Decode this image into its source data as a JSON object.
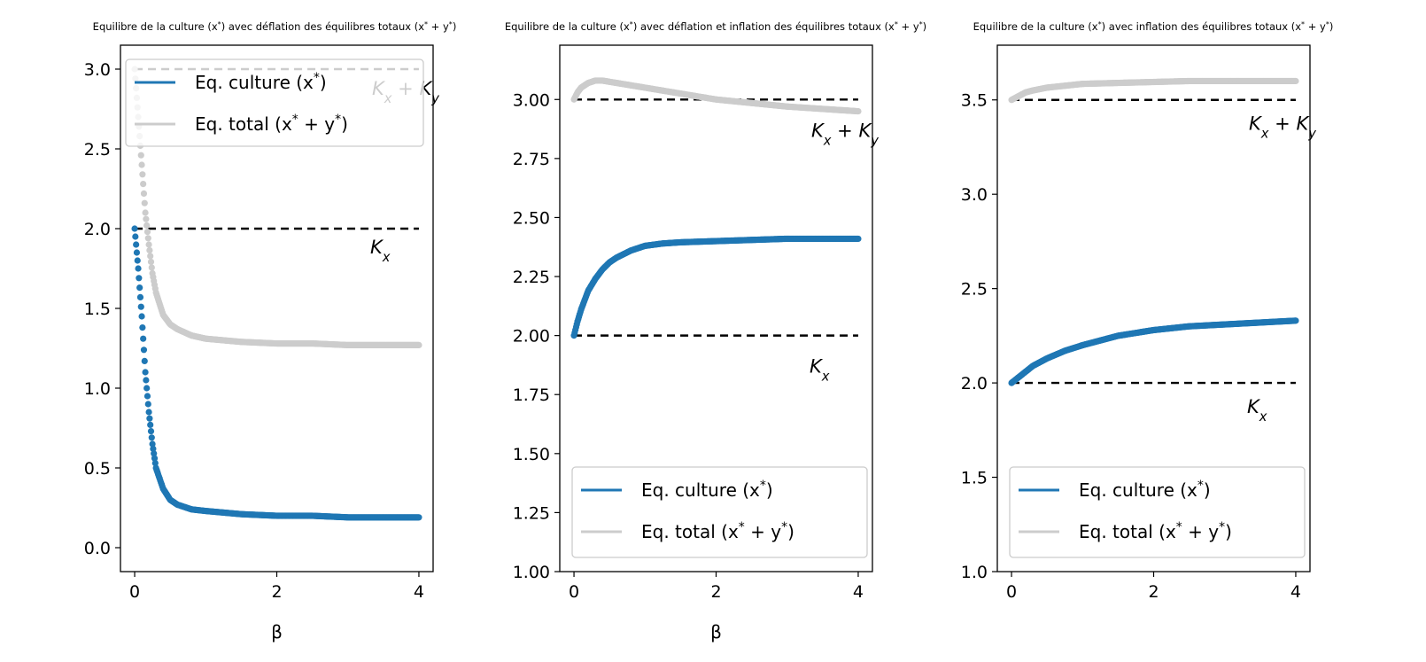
{
  "figure": {
    "panels": [
      {
        "title": "Equilibre de la culture (x*) avec déflation des équilibres totaux (x* + y*)",
        "xlabel": "β",
        "annotations": [
          "Kx + Ky",
          "Kx"
        ],
        "legend": [
          "Eq. culture (x*)",
          "Eq. total (x* + y*)"
        ]
      },
      {
        "title": "Equilibre de la culture (x*) avec déflation et inflation des équilibres totaux (x* + y*)",
        "xlabel": "β",
        "annotations": [
          "Kx + Ky",
          "Kx"
        ],
        "legend": [
          "Eq. culture (x*)",
          "Eq. total (x* + y*)"
        ]
      },
      {
        "title": "Equilibre de la culture (x*)  avec inflation des équilibres totaux (x* + y*)",
        "xlabel": "",
        "annotations": [
          "Kx + Ky",
          "Kx"
        ],
        "legend": [
          "Eq. culture (x*)",
          "Eq. total (x* + y*)"
        ]
      }
    ]
  },
  "chart_data": [
    {
      "type": "scatter",
      "title": "Equilibre de la culture (x*) avec déflation des équilibres totaux (x* + y*)",
      "xlabel": "β",
      "ylabel": "",
      "xlim": [
        -0.2,
        4.2
      ],
      "ylim": [
        -0.15,
        3.15
      ],
      "xticks": [
        0,
        2,
        4
      ],
      "yticks": [
        0.0,
        0.5,
        1.0,
        1.5,
        2.0,
        2.5,
        3.0
      ],
      "ytick_labels": [
        "0.0",
        "0.5",
        "1.0",
        "1.5",
        "2.0",
        "2.5",
        "3.0"
      ],
      "legend_position": "top-right",
      "reference_lines": [
        {
          "label": "Kx + Ky",
          "y": 3.0,
          "x": [
            0,
            4
          ]
        },
        {
          "label": "Kx",
          "y": 2.0,
          "x": [
            0,
            4
          ]
        }
      ],
      "series": [
        {
          "name": "Eq. culture (x*)",
          "color": "#1f77b4",
          "x": [
            0,
            0.05,
            0.1,
            0.15,
            0.2,
            0.25,
            0.3,
            0.4,
            0.5,
            0.6,
            0.8,
            1.0,
            1.5,
            2.0,
            2.5,
            3.0,
            3.5,
            4.0
          ],
          "y": [
            2.0,
            1.75,
            1.45,
            1.1,
            0.85,
            0.65,
            0.5,
            0.37,
            0.3,
            0.27,
            0.24,
            0.23,
            0.21,
            0.2,
            0.2,
            0.19,
            0.19,
            0.19
          ]
        },
        {
          "name": "Eq. total (x* + y*)",
          "color": "#cccccc",
          "x": [
            0,
            0.05,
            0.1,
            0.15,
            0.2,
            0.25,
            0.3,
            0.4,
            0.5,
            0.6,
            0.8,
            1.0,
            1.5,
            2.0,
            2.5,
            3.0,
            3.5,
            4.0
          ],
          "y": [
            3.0,
            2.7,
            2.4,
            2.1,
            1.9,
            1.72,
            1.6,
            1.46,
            1.4,
            1.37,
            1.33,
            1.31,
            1.29,
            1.28,
            1.28,
            1.27,
            1.27,
            1.27
          ]
        }
      ]
    },
    {
      "type": "scatter",
      "title": "Equilibre de la culture (x*) avec déflation et inflation des équilibres totaux (x* + y*)",
      "xlabel": "β",
      "ylabel": "",
      "xlim": [
        -0.2,
        4.2
      ],
      "ylim": [
        1.0,
        3.23
      ],
      "xticks": [
        0,
        2,
        4
      ],
      "yticks": [
        1.0,
        1.25,
        1.5,
        1.75,
        2.0,
        2.25,
        2.5,
        2.75,
        3.0
      ],
      "ytick_labels": [
        "1.00",
        "1.25",
        "1.50",
        "1.75",
        "2.00",
        "2.25",
        "2.50",
        "2.75",
        "3.00"
      ],
      "legend_position": "bottom-right",
      "reference_lines": [
        {
          "label": "Kx + Ky",
          "y": 3.0,
          "x": [
            0,
            4
          ]
        },
        {
          "label": "Kx",
          "y": 2.0,
          "x": [
            0,
            4
          ]
        }
      ],
      "series": [
        {
          "name": "Eq. culture (x*)",
          "color": "#1f77b4",
          "x": [
            0,
            0.05,
            0.1,
            0.2,
            0.3,
            0.4,
            0.5,
            0.6,
            0.8,
            1.0,
            1.25,
            1.5,
            2.0,
            2.5,
            3.0,
            3.5,
            4.0
          ],
          "y": [
            2.0,
            2.06,
            2.11,
            2.19,
            2.24,
            2.28,
            2.31,
            2.33,
            2.36,
            2.38,
            2.39,
            2.395,
            2.4,
            2.405,
            2.41,
            2.41,
            2.41
          ]
        },
        {
          "name": "Eq. total (x* + y*)",
          "color": "#cccccc",
          "x": [
            0,
            0.05,
            0.1,
            0.2,
            0.3,
            0.4,
            0.5,
            0.6,
            0.8,
            1.0,
            1.5,
            2.0,
            2.5,
            3.0,
            3.5,
            4.0
          ],
          "y": [
            3.0,
            3.03,
            3.05,
            3.07,
            3.08,
            3.08,
            3.075,
            3.07,
            3.06,
            3.05,
            3.025,
            3.0,
            2.985,
            2.97,
            2.96,
            2.95
          ]
        }
      ]
    },
    {
      "type": "scatter",
      "title": "Equilibre de la culture (x*)  avec inflation des équilibres totaux (x* + y*)",
      "xlabel": "",
      "ylabel": "",
      "xlim": [
        -0.2,
        4.2
      ],
      "ylim": [
        1.0,
        3.79
      ],
      "xticks": [
        0,
        2,
        4
      ],
      "yticks": [
        1.0,
        1.5,
        2.0,
        2.5,
        3.0,
        3.5
      ],
      "ytick_labels": [
        "1.0",
        "1.5",
        "2.0",
        "2.5",
        "3.0",
        "3.5"
      ],
      "legend_position": "bottom-right",
      "reference_lines": [
        {
          "label": "Kx + Ky",
          "y": 3.5,
          "x": [
            0,
            4
          ]
        },
        {
          "label": "Kx",
          "y": 2.0,
          "x": [
            0,
            4
          ]
        }
      ],
      "series": [
        {
          "name": "Eq. culture (x*)",
          "color": "#1f77b4",
          "x": [
            0,
            0.1,
            0.2,
            0.3,
            0.5,
            0.75,
            1.0,
            1.5,
            2.0,
            2.5,
            3.0,
            3.5,
            4.0
          ],
          "y": [
            2.0,
            2.03,
            2.06,
            2.09,
            2.13,
            2.17,
            2.2,
            2.25,
            2.28,
            2.3,
            2.31,
            2.32,
            2.33
          ]
        },
        {
          "name": "Eq. total (x* + y*)",
          "color": "#cccccc",
          "x": [
            0,
            0.1,
            0.2,
            0.3,
            0.5,
            0.75,
            1.0,
            1.5,
            2.0,
            2.5,
            3.0,
            3.5,
            4.0
          ],
          "y": [
            3.5,
            3.52,
            3.54,
            3.55,
            3.565,
            3.575,
            3.585,
            3.59,
            3.595,
            3.6,
            3.6,
            3.6,
            3.6
          ]
        }
      ]
    }
  ]
}
